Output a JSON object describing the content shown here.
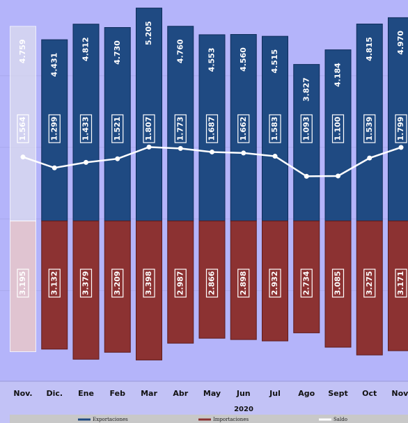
{
  "chart_data": {
    "type": "bar",
    "x_label": "2020",
    "categories": [
      "Nov.",
      "Dic.",
      "Ene",
      "Feb",
      "Mar",
      "Abr",
      "May",
      "Jun",
      "Jul",
      "Ago",
      "Sept",
      "Oct",
      "Nov."
    ],
    "series": [
      {
        "name": "Exportaciones",
        "color": "#1f4a82",
        "values": [
          4.759,
          4.431,
          4.812,
          4.73,
          5.205,
          4.76,
          4.553,
          4.56,
          4.515,
          3.827,
          4.184,
          4.815,
          4.97
        ],
        "value_labels": [
          "4.759",
          "4.431",
          "4.812",
          "4.730",
          "5.205",
          "4.760",
          "4.553",
          "4.560",
          "4.515",
          "3.827",
          "4.184",
          "4.815",
          "4.970"
        ]
      },
      {
        "name": "Importaciones",
        "color": "#8c3232",
        "values": [
          3.195,
          3.132,
          3.379,
          3.209,
          3.398,
          2.987,
          2.866,
          2.898,
          2.932,
          2.734,
          3.085,
          3.275,
          3.171
        ],
        "value_labels": [
          "3.195",
          "3.132",
          "3.379",
          "3.209",
          "3.398",
          "2.987",
          "2.866",
          "2.898",
          "2.932",
          "2.734",
          "3.085",
          "3.275",
          "3.171"
        ]
      },
      {
        "name": "Saldo",
        "color": "#ffffff",
        "values": [
          1.564,
          1.299,
          1.433,
          1.521,
          1.807,
          1.773,
          1.687,
          1.662,
          1.583,
          1.093,
          1.1,
          1.539,
          1.799
        ],
        "value_labels": [
          "1.564",
          "1.299",
          "1.433",
          "1.521",
          "1.807",
          "1.773",
          "1.687",
          "1.662",
          "1.583",
          "1.093",
          "1.100",
          "1.539",
          "1.799"
        ]
      }
    ],
    "ylim": [
      -3.45,
      5.3
    ]
  }
}
